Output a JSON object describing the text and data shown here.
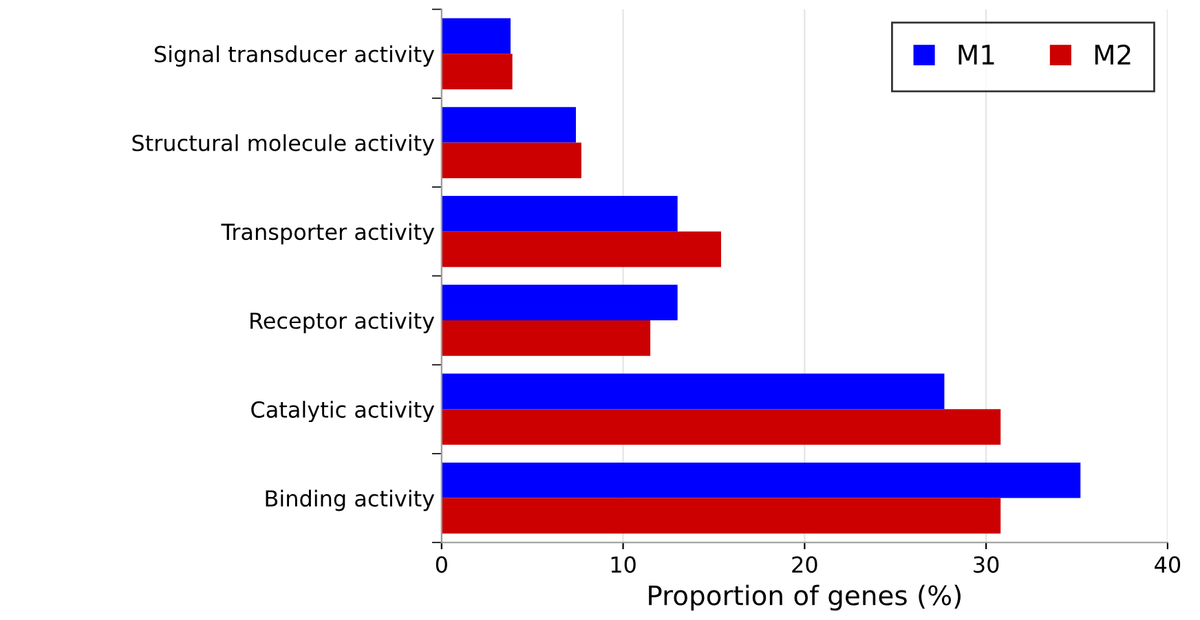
{
  "chart_data": {
    "type": "bar",
    "orientation": "horizontal",
    "xlabel": "Proportion of genes (%)",
    "categories": [
      "Signal transducer activity",
      "Structural molecule activity",
      "Transporter activity",
      "Receptor activity",
      "Catalytic activity",
      "Binding activity"
    ],
    "series": [
      {
        "name": "M1",
        "color": "#0000ff",
        "values": [
          3.8,
          7.4,
          13.0,
          13.0,
          27.7,
          35.2
        ]
      },
      {
        "name": "M2",
        "color": "#cc0000",
        "values": [
          3.9,
          7.7,
          15.4,
          11.5,
          30.8,
          30.8
        ]
      }
    ],
    "xlim": [
      0,
      40
    ],
    "xticks": [
      0,
      10,
      20,
      30,
      40
    ],
    "grid": "x",
    "legend": "top right"
  }
}
